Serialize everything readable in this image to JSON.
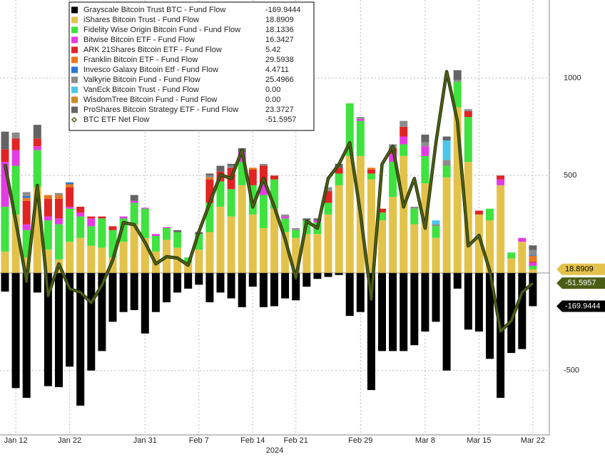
{
  "chart_data": {
    "type": "bar",
    "stacked": true,
    "categories": [
      null,
      "Jan 12",
      null,
      null,
      null,
      null,
      "Jan 22",
      null,
      null,
      null,
      null,
      null,
      null,
      "Jan 31",
      null,
      null,
      null,
      null,
      "Feb 7",
      null,
      null,
      null,
      null,
      "Feb 14",
      null,
      null,
      null,
      "Feb 21",
      null,
      null,
      null,
      null,
      null,
      "Feb 29",
      null,
      null,
      null,
      null,
      null,
      "Mar 8",
      null,
      null,
      null,
      null,
      "Mar 15",
      null,
      null,
      null,
      null,
      "Mar 22"
    ],
    "x_sublabel": "2024",
    "ylim": [
      -830,
      1400
    ],
    "yticks": [
      -500,
      500,
      1000
    ],
    "grid": true,
    "legend": "upper left",
    "series": [
      {
        "name": "Grayscale Bitcoin Trust BTC - Fund Flow",
        "color": "#000000",
        "legend_value": -169.9444,
        "values": [
          -95,
          -590,
          -640,
          -100,
          -580,
          -585,
          -480,
          -680,
          -500,
          -400,
          -250,
          -200,
          -190,
          -310,
          -200,
          -150,
          -100,
          -80,
          -60,
          -150,
          -100,
          -130,
          -175,
          -70,
          -175,
          -170,
          -130,
          -140,
          -70,
          -30,
          -20,
          -10,
          -220,
          -200,
          -600,
          -400,
          -400,
          -400,
          -370,
          -300,
          -250,
          -500,
          -80,
          -290,
          -300,
          -440,
          -640,
          -410,
          -390,
          -169.9444
        ]
      },
      {
        "name": "iShares Bitcoin Trust - Fund Flow",
        "color": "#e3c24b",
        "legend_value": 18.8909,
        "values": [
          110,
          300,
          80,
          440,
          120,
          70,
          160,
          180,
          140,
          130,
          80,
          160,
          250,
          180,
          110,
          170,
          130,
          50,
          120,
          210,
          340,
          290,
          450,
          300,
          230,
          330,
          210,
          180,
          200,
          200,
          300,
          450,
          600,
          600,
          480,
          270,
          390,
          600,
          250,
          460,
          180,
          490,
          850,
          570,
          300,
          270,
          450,
          75,
          160,
          18.8909
        ]
      },
      {
        "name": "Fidelity Wise Origin Bitcoin Fund - Fund Flow",
        "color": "#3fe23f",
        "legend_value": 18.1336,
        "values": [
          230,
          250,
          140,
          190,
          150,
          180,
          170,
          110,
          100,
          150,
          140,
          120,
          110,
          150,
          80,
          60,
          80,
          30,
          80,
          150,
          130,
          140,
          120,
          150,
          170,
          150,
          70,
          40,
          70,
          60,
          60,
          60,
          270,
          180,
          30,
          40,
          180,
          60,
          80,
          140,
          60,
          60,
          130,
          230,
          0,
          60,
          0,
          30,
          0,
          18.1336
        ]
      },
      {
        "name": "Bitwise Bitcoin ETF - Fund Flow",
        "color": "#e33ce3",
        "legend_value": 16.3427,
        "values": [
          230,
          80,
          30,
          20,
          20,
          30,
          10,
          20,
          40,
          0,
          0,
          10,
          10,
          5,
          10,
          5,
          0,
          0,
          0,
          0,
          0,
          0,
          50,
          0,
          60,
          0,
          10,
          0,
          0,
          10,
          0,
          0,
          0,
          10,
          0,
          0,
          40,
          40,
          0,
          50,
          0,
          0,
          0,
          0,
          0,
          0,
          30,
          0,
          20,
          16.3427
        ]
      },
      {
        "name": "ARK 21Shares Bitcoin ETF - Fund Flow",
        "color": "#e02424",
        "legend_value": 5.42,
        "values": [
          65,
          60,
          120,
          40,
          90,
          100,
          100,
          30,
          10,
          10,
          20,
          0,
          0,
          0,
          0,
          0,
          0,
          0,
          0,
          120,
          50,
          110,
          0,
          80,
          90,
          20,
          0,
          0,
          0,
          0,
          60,
          30,
          0,
          0,
          20,
          20,
          30,
          50,
          0,
          0,
          0,
          0,
          0,
          30,
          20,
          0,
          20,
          0,
          0,
          5.42
        ]
      },
      {
        "name": "Franklin Bitcoin ETF - Fund Flow",
        "color": "#e8781e",
        "legend_value": 29.5938,
        "values": [
          0,
          0,
          15,
          0,
          20,
          20,
          15,
          0,
          0,
          0,
          0,
          0,
          0,
          0,
          0,
          0,
          0,
          0,
          0,
          10,
          0,
          0,
          0,
          10,
          0,
          0,
          0,
          0,
          0,
          0,
          0,
          0,
          0,
          0,
          10,
          0,
          0,
          0,
          0,
          0,
          0,
          0,
          0,
          0,
          0,
          0,
          0,
          0,
          0,
          29.5938
        ]
      },
      {
        "name": "Invesco Galaxy Bitcoin Etf - Fund Flow",
        "color": "#2a78d6",
        "legend_value": 4.4711,
        "values": [
          0,
          0,
          10,
          0,
          0,
          0,
          10,
          0,
          0,
          0,
          0,
          0,
          0,
          0,
          0,
          0,
          0,
          0,
          0,
          0,
          0,
          0,
          0,
          0,
          0,
          0,
          0,
          0,
          0,
          0,
          0,
          0,
          0,
          0,
          0,
          0,
          0,
          0,
          0,
          0,
          0,
          0,
          0,
          0,
          0,
          0,
          0,
          0,
          0,
          4.4711
        ]
      },
      {
        "name": "Valkyrie Bitcoin Fund - Fund Flow",
        "color": "#8c8c8c",
        "legend_value": 25.4966,
        "values": [
          0,
          30,
          20,
          0,
          0,
          10,
          0,
          0,
          0,
          0,
          0,
          0,
          0,
          0,
          0,
          0,
          0,
          0,
          0,
          10,
          0,
          10,
          0,
          0,
          10,
          0,
          10,
          10,
          0,
          0,
          20,
          0,
          0,
          10,
          0,
          0,
          20,
          30,
          10,
          20,
          10,
          30,
          10,
          10,
          0,
          0,
          0,
          0,
          0,
          25.4966
        ]
      },
      {
        "name": "VanEck Bitcoin Trust - Fund Flow",
        "color": "#4cc6ea",
        "legend_value": {
          "value": 0,
          "label": "0.00"
        },
        "values": [
          0,
          0,
          0,
          0,
          0,
          0,
          0,
          0,
          0,
          0,
          0,
          0,
          0,
          0,
          0,
          0,
          0,
          0,
          0,
          0,
          0,
          0,
          0,
          0,
          0,
          0,
          0,
          0,
          0,
          0,
          0,
          0,
          0,
          0,
          0,
          0,
          0,
          0,
          0,
          0,
          20,
          100,
          0,
          0,
          0,
          0,
          0,
          0,
          0,
          0
        ]
      },
      {
        "name": "WisdomTree Bitcoin Fund - Fund Flow",
        "color": "#c98b2e",
        "legend_value": {
          "value": 0,
          "label": "0.00"
        },
        "values": [
          0,
          0,
          0,
          0,
          0,
          0,
          0,
          0,
          0,
          0,
          0,
          0,
          0,
          0,
          0,
          0,
          0,
          0,
          0,
          0,
          0,
          0,
          0,
          0,
          0,
          0,
          0,
          0,
          0,
          0,
          0,
          0,
          0,
          0,
          0,
          0,
          0,
          0,
          0,
          0,
          0,
          0,
          0,
          0,
          0,
          0,
          0,
          0,
          0,
          0
        ]
      },
      {
        "name": "ProShares Bitcoin Strategy ETF - Fund Flow",
        "color": "#646464",
        "legend_value": 23.3727,
        "values": [
          90,
          0,
          0,
          70,
          0,
          0,
          0,
          0,
          0,
          0,
          0,
          0,
          30,
          0,
          0,
          0,
          10,
          0,
          10,
          10,
          30,
          10,
          20,
          0,
          0,
          0,
          0,
          0,
          10,
          10,
          0,
          20,
          0,
          0,
          0,
          0,
          0,
          0,
          0,
          40,
          0,
          20,
          50,
          0,
          0,
          0,
          0,
          0,
          0,
          23.3727
        ]
      },
      {
        "name": "BTC ETF Net Flow",
        "type": "line",
        "color": "#4b5e16",
        "legend_value": -51.5957,
        "values": [
          558,
          266,
          -44,
          449,
          -117,
          47,
          -80,
          -99,
          -153,
          -62,
          66,
          259,
          248,
          157,
          47,
          84,
          77,
          40,
          212,
          358,
          504,
          485,
          631,
          339,
          485,
          339,
          175,
          -26,
          266,
          230,
          485,
          558,
          668,
          303,
          -135,
          558,
          650,
          339,
          485,
          230,
          668,
          1033,
          777,
          139,
          193,
          11,
          -299,
          -245,
          -99,
          -51.5957
        ]
      }
    ]
  }
}
